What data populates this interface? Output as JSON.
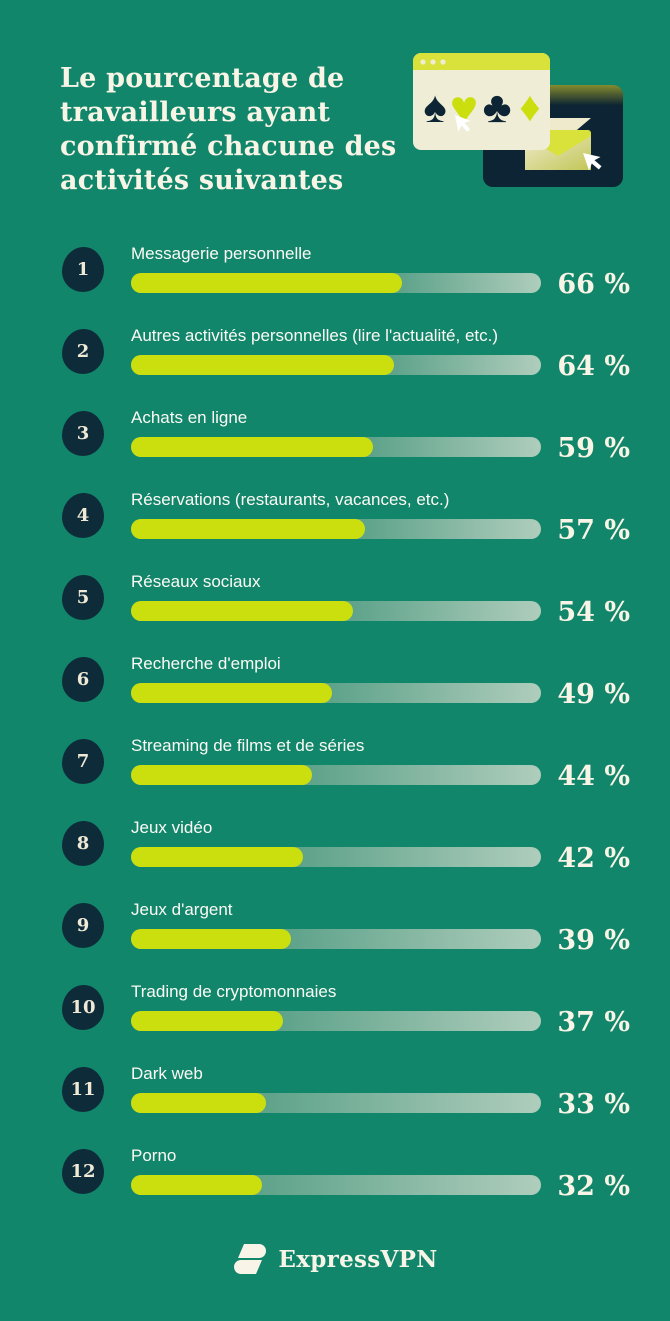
{
  "header": {
    "title": "Le pourcentage de travailleurs ayant confirmé chacune des activités suivantes",
    "title_lines": [
      "Le pourcentage de",
      "travailleurs ayant",
      "confirmé chacune des",
      "activités suivantes"
    ]
  },
  "illustration": {
    "icons": [
      "browser-window-icon",
      "spade-icon",
      "heart-icon",
      "club-icon",
      "diamond-icon",
      "cursor-icon",
      "dark-card-icon",
      "envelope-icon",
      "cursor-icon"
    ],
    "suits": [
      "♠",
      "♥",
      "♣",
      "♦"
    ]
  },
  "chart_data": {
    "type": "bar",
    "orientation": "horizontal",
    "title": "Le pourcentage de travailleurs ayant confirmé chacune des activités suivantes",
    "unit": "%",
    "xlim": [
      0,
      100
    ],
    "categories": [
      "Messagerie personnelle",
      "Autres activités personnelles (lire l'actualité, etc.)",
      "Achats en ligne",
      "Réservations (restaurants, vacances, etc.)",
      "Réseaux sociaux",
      "Recherche d'emploi",
      "Streaming de films et de séries",
      "Jeux vidéo",
      "Jeux d'argent",
      "Trading de cryptomonnaies",
      "Dark web",
      "Porno"
    ],
    "values": [
      66,
      64,
      59,
      57,
      54,
      49,
      44,
      42,
      39,
      37,
      33,
      32
    ]
  },
  "rows": [
    {
      "rank": "1",
      "label": "Messagerie personnelle",
      "percent_label": "66 %"
    },
    {
      "rank": "2",
      "label": "Autres activités personnelles (lire l'actualité, etc.)",
      "percent_label": "64 %"
    },
    {
      "rank": "3",
      "label": "Achats en ligne",
      "percent_label": "59 %"
    },
    {
      "rank": "4",
      "label": "Réservations (restaurants, vacances, etc.)",
      "percent_label": "57 %"
    },
    {
      "rank": "5",
      "label": "Réseaux sociaux",
      "percent_label": "54 %"
    },
    {
      "rank": "6",
      "label": "Recherche d'emploi",
      "percent_label": "49 %"
    },
    {
      "rank": "7",
      "label": "Streaming de films et de séries",
      "percent_label": "44 %"
    },
    {
      "rank": "8",
      "label": "Jeux vidéo",
      "percent_label": "42 %"
    },
    {
      "rank": "9",
      "label": "Jeux d'argent",
      "percent_label": "39 %"
    },
    {
      "rank": "10",
      "label": "Trading de cryptomonnaies",
      "percent_label": "37 %"
    },
    {
      "rank": "11",
      "label": "Dark web",
      "percent_label": "33 %"
    },
    {
      "rank": "12",
      "label": "Porno",
      "percent_label": "32 %"
    }
  ],
  "footer": {
    "brand": "ExpressVPN"
  },
  "colors": {
    "background": "#12866B",
    "bar_fill": "#CBDF0E",
    "track_start": "#5FA38B",
    "track_end": "#AFCDBC",
    "badge": "#0D2B38",
    "title_text": "#F8F4E6",
    "navy": "#0C2433",
    "lime": "#D8E23B",
    "cream": "#F0EDD6"
  }
}
